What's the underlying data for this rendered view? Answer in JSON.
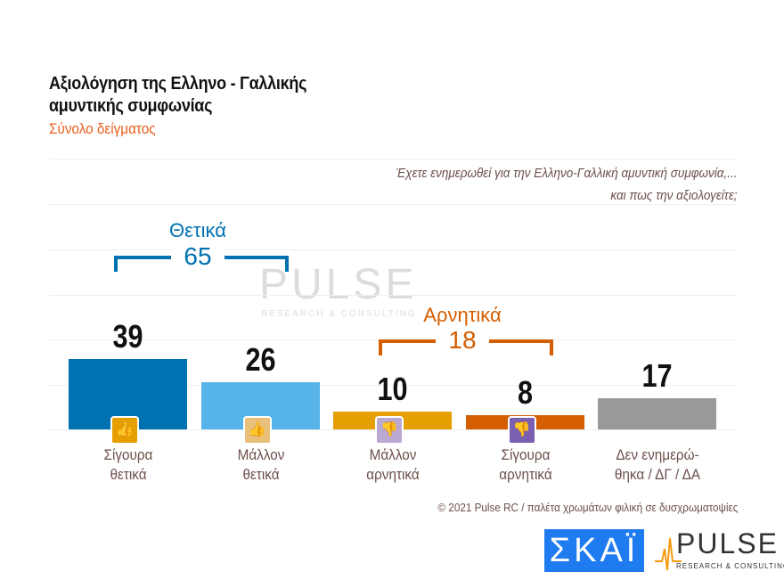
{
  "title_line1": "Αξιολόγηση της Ελληνο - Γαλλικής",
  "title_line2": "αμυντικής συμφωνίας",
  "subtitle": "Σύνολο δείγματος",
  "question_line1": "Έχετε ενημερωθεί για την Ελληνο-Γαλλική αμυντική συμφωνία,...",
  "question_line2": "και πως την αξιολογείτε;",
  "chart_data": {
    "type": "bar",
    "categories": [
      [
        "Σίγουρα",
        "θετικά"
      ],
      [
        "Μάλλον",
        "θετικά"
      ],
      [
        "Μάλλον",
        "αρνητικά"
      ],
      [
        "Σίγουρα",
        "αρνητικά"
      ],
      [
        "Δεν ενημερώ-",
        "θηκα / ΔΓ / ΔΑ"
      ]
    ],
    "values": [
      39,
      26,
      10,
      8,
      17
    ],
    "colors": [
      "#0072b2",
      "#56b4e9",
      "#e69f00",
      "#d55e00",
      "#999999"
    ],
    "icons": [
      "double-thumbs-up-icon",
      "thumbs-up-icon",
      "thumbs-down-icon",
      "double-thumbs-down-icon",
      null
    ],
    "icon_colors": [
      "#e69f00",
      "#e8c07a",
      "#b9a9d0",
      "#7b5fb0"
    ],
    "groups": [
      {
        "label": "Θετικά",
        "total": "65",
        "color": "#0072b2"
      },
      {
        "label": "Αρνητικά",
        "total": "18",
        "color": "#d55e00"
      }
    ],
    "ylim": [
      0,
      45
    ]
  },
  "watermark": {
    "name": "PULSE",
    "tagline": "RESEARCH & CONSULTING"
  },
  "footer": "© 2021 Pulse RC  /  παλέτα χρωμάτων φιλική σε δυσχρωματοψίες",
  "logos": {
    "skai": "ΣΚΑΪ",
    "pulse": "PULSE",
    "pulse_tagline": "RESEARCH & CONSULTING"
  }
}
